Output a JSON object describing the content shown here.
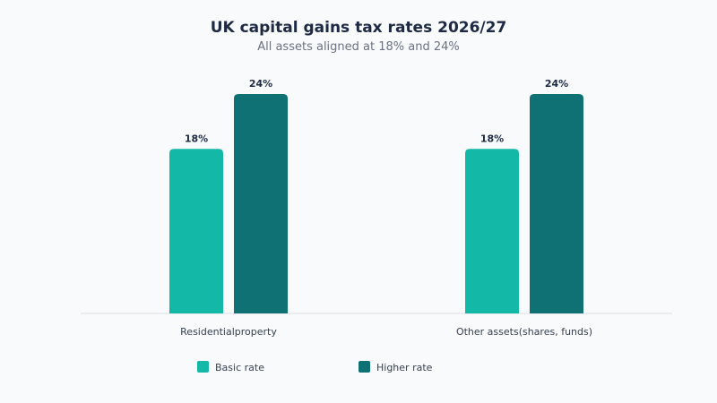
{
  "colors": {
    "basic": "#14b8a6",
    "higher": "#0f7173",
    "axis": "#e5e7eb"
  },
  "chart_data": {
    "type": "bar",
    "title": "UK capital gains tax rates 2026/27",
    "subtitle": "All assets aligned at 18% and 24%",
    "categories": [
      "Residentialproperty",
      "Other assets(shares, funds)"
    ],
    "series": [
      {
        "name": "Basic rate",
        "values": [
          18,
          18
        ],
        "labels": [
          "18%",
          "18%"
        ]
      },
      {
        "name": "Higher rate",
        "values": [
          24,
          24
        ],
        "labels": [
          "24%",
          "24%"
        ]
      }
    ],
    "xlabel": "",
    "ylabel": "",
    "ylim": [
      0,
      24
    ],
    "grid": false,
    "legend": "bottom"
  }
}
